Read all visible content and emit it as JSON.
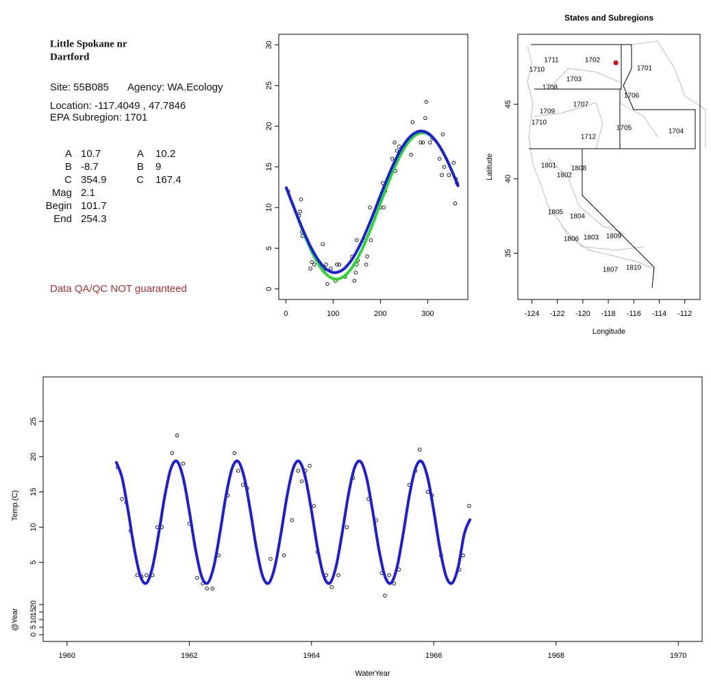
{
  "info": {
    "title": [
      "Little Spokane nr",
      "Dartford"
    ],
    "site": "Site: 55B085",
    "agency": "Agency: WA.Ecology",
    "location": "Location: -117.4049 , 47.7846",
    "subregion": "EPA Subregion: 1701",
    "params": [
      [
        "A",
        "10.7",
        "A",
        "10.2"
      ],
      [
        "B",
        "-8.7",
        "B",
        "9"
      ],
      [
        "C",
        "354.9",
        "C",
        "167.4"
      ],
      [
        "Mag",
        "2.1"
      ],
      [
        "Begin",
        "101.7"
      ],
      [
        "End",
        "254.3"
      ]
    ],
    "note": "Data QA/QC NOT guaranteed"
  },
  "chart_data": [
    {
      "type": "scatter",
      "xlim": [
        -15,
        385
      ],
      "ylim": [
        -1.3,
        31.3
      ],
      "xticks": [
        0,
        100,
        200,
        300
      ],
      "yticks": [
        0,
        5,
        10,
        15,
        20,
        25,
        30
      ],
      "series": [
        {
          "mode": "points",
          "color": "#000000",
          "x": [
            5,
            28,
            30,
            32,
            34,
            35,
            45,
            52,
            55,
            60,
            78,
            80,
            85,
            88,
            95,
            105,
            108,
            113,
            125,
            140,
            145,
            148,
            150,
            150,
            152,
            165,
            170,
            172,
            178,
            180,
            200,
            205,
            207,
            210,
            225,
            230,
            232,
            235,
            240,
            265,
            268,
            285,
            290,
            295,
            297,
            305,
            310,
            325,
            330,
            332,
            335,
            345,
            355,
            358,
            360,
            362
          ],
          "values": [
            12,
            9,
            9.5,
            11,
            7,
            6.5,
            6,
            2.5,
            3.3,
            3,
            5.5,
            2.2,
            3,
            0.6,
            2.5,
            1,
            3,
            3,
            1.5,
            4,
            1,
            2,
            3,
            6,
            3.5,
            6,
            3,
            4,
            10,
            6,
            10,
            13,
            10,
            12,
            16,
            18,
            14.5,
            17,
            17.5,
            16.5,
            20.5,
            18,
            18,
            21,
            23,
            18,
            18.5,
            16,
            14,
            19,
            15,
            14,
            15.5,
            10.5,
            13.5,
            13
          ]
        },
        {
          "mode": "line",
          "color": "#22dd22",
          "x": [
            0,
            20,
            40,
            60,
            80,
            100,
            120,
            140,
            160,
            180,
            200,
            220,
            240,
            260,
            280,
            300,
            320,
            340,
            360,
            365
          ],
          "values": [
            12.58,
            9.51,
            6.51,
            3.96,
            2.14,
            1.26,
            1.43,
            2.64,
            4.72,
            7.45,
            10.52,
            13.53,
            16.16,
            18.08,
            19.08,
            19.05,
            17.98,
            15.97,
            13.31,
            12.58
          ]
        },
        {
          "mode": "line",
          "color": "#1a1aee",
          "x": [
            0,
            20,
            40,
            60,
            80,
            100,
            120,
            140,
            160,
            180,
            200,
            220,
            240,
            260,
            280,
            300,
            320,
            340,
            360,
            365
          ],
          "values": [
            12.55,
            9.58,
            6.73,
            4.36,
            2.71,
            2.02,
            2.34,
            3.64,
            5.77,
            8.48,
            11.45,
            14.33,
            16.79,
            18.53,
            19.35,
            19.16,
            17.97,
            15.94,
            13.29,
            12.55
          ]
        }
      ]
    },
    {
      "type": "map",
      "title": "States and Subregions",
      "xlabel": "Longitude",
      "ylabel": "Latitude",
      "xlim": [
        -125.1,
        -110.8
      ],
      "ylim": [
        31.9,
        49.7
      ],
      "xticks": [
        -124,
        -122,
        -120,
        -118,
        -116,
        -114,
        -112
      ],
      "yticks": [
        35,
        40,
        45
      ],
      "regions": [
        "1711",
        "1710",
        "1702",
        "1701",
        "1703",
        "1708",
        "1706",
        "1707",
        "1709",
        "1710",
        "1705",
        "1704",
        "1712",
        "1801",
        "1808",
        "1802",
        "1805",
        "1804",
        "1809",
        "1803",
        "1806",
        "1810",
        "1807"
      ],
      "point": {
        "x": -117.4049,
        "y": 47.7846,
        "color": "#ee0000"
      }
    },
    {
      "type": "line",
      "xlabel": "WaterYear",
      "ylabel": "Temp.(C)",
      "y2label": "@Year",
      "xlim": [
        1959.61,
        1970.39
      ],
      "ylim": [
        -6.2,
        31.3
      ],
      "y2lim": [
        -4.5,
        171
      ],
      "xticks": [
        1960,
        1962,
        1964,
        1966,
        1968,
        1970
      ],
      "yticks": [
        5,
        10,
        15,
        20,
        25
      ],
      "y2ticks": [
        0,
        5,
        10,
        15,
        20
      ],
      "series": [
        {
          "mode": "points",
          "color": "#000000",
          "x": [
            1960.83,
            1960.9,
            1960.97,
            1961.04,
            1961.15,
            1961.22,
            1961.3,
            1961.4,
            1961.48,
            1961.55,
            1961.72,
            1961.8,
            1961.9,
            1962.0,
            1962.13,
            1962.22,
            1962.29,
            1962.38,
            1962.48,
            1962.63,
            1962.74,
            1962.8,
            1962.88,
            1962.95,
            1963.33,
            1963.55,
            1963.68,
            1963.78,
            1963.84,
            1963.9,
            1963.97,
            1964.04,
            1964.1,
            1964.24,
            1964.33,
            1964.44,
            1964.58,
            1964.68,
            1964.93,
            1965.06,
            1965.15,
            1965.2,
            1965.27,
            1965.35,
            1965.43,
            1965.6,
            1965.7,
            1965.77,
            1965.9,
            1965.97,
            1966.12,
            1966.42,
            1966.48,
            1966.58
          ],
          "values": [
            18.5,
            14,
            13.5,
            9.5,
            3.2,
            3,
            3.2,
            3.2,
            10,
            10,
            20.5,
            23,
            19,
            10.5,
            2.8,
            2,
            1.3,
            1.3,
            6,
            14.5,
            20.5,
            18,
            16,
            15.5,
            5.5,
            6,
            11,
            18,
            16.5,
            18,
            18.7,
            13,
            6.5,
            3.2,
            1.5,
            3.2,
            10,
            17,
            14,
            11,
            3.5,
            0.3,
            3.2,
            2,
            4,
            16,
            18,
            21,
            15,
            14.5,
            6,
            4,
            6,
            13
          ]
        },
        {
          "mode": "line",
          "color": "#1a1aee",
          "x": [
            1960.8,
            1960.9,
            1961.0,
            1961.1,
            1961.2,
            1961.3,
            1961.4,
            1961.5,
            1961.6,
            1961.7,
            1961.8,
            1961.9,
            1962.0,
            1962.1,
            1962.2,
            1962.3,
            1962.4,
            1962.5,
            1962.6,
            1962.7,
            1962.8,
            1962.9,
            1963.0,
            1963.1,
            1963.2,
            1963.3,
            1963.4,
            1963.5,
            1963.6,
            1963.7,
            1963.8,
            1963.9,
            1964.0,
            1964.1,
            1964.2,
            1964.3,
            1964.4,
            1964.5,
            1964.6,
            1964.7,
            1964.8,
            1964.9,
            1965.0,
            1965.1,
            1965.2,
            1965.3,
            1965.4,
            1965.5,
            1965.6,
            1965.7,
            1965.8,
            1965.9,
            1966.0,
            1966.1,
            1966.2,
            1966.3,
            1966.4,
            1966.5,
            1966.6
          ],
          "values": [
            19.33,
            17.04,
            12.33,
            6.99,
            3.08,
            2.07,
            4.36,
            9.07,
            14.41,
            18.32,
            19.33,
            17.04,
            12.33,
            6.99,
            3.08,
            2.07,
            4.36,
            9.07,
            14.41,
            18.32,
            19.33,
            17.04,
            12.33,
            6.99,
            3.08,
            2.07,
            4.36,
            9.07,
            14.41,
            18.32,
            19.33,
            17.04,
            12.33,
            6.99,
            3.08,
            2.07,
            4.36,
            9.07,
            14.41,
            18.32,
            19.33,
            17.04,
            12.33,
            6.99,
            3.08,
            2.07,
            4.36,
            9.07,
            14.41,
            18.32,
            19.33,
            17.04,
            12.33,
            6.99,
            3.08,
            2.07,
            4.36,
            9.07,
            11.2
          ]
        }
      ]
    }
  ]
}
